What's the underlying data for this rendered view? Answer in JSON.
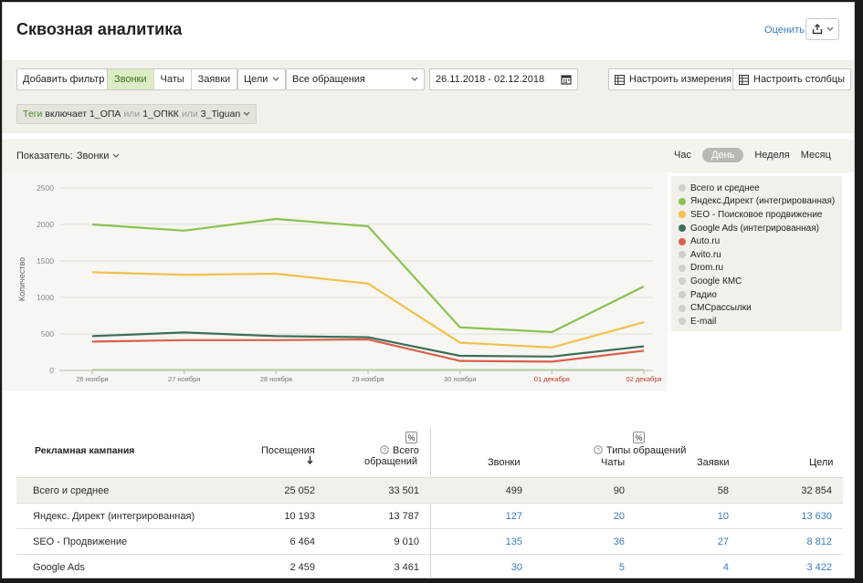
{
  "header": {
    "title": "Сквозная аналитика",
    "rate_label": "Оценить"
  },
  "toolbar": {
    "add_filter": "Добавить фильтр",
    "types": [
      {
        "label": "Звонки",
        "active": true
      },
      {
        "label": "Чаты",
        "active": false
      },
      {
        "label": "Заявки",
        "active": false
      }
    ],
    "goals": "Цели",
    "requests_select": "Все обращения",
    "date_range": "26.11.2018 - 02.12.2018",
    "configure_dimensions": "Настроить измерения",
    "configure_columns": "Настроить столбцы"
  },
  "tag_filter": {
    "prefix": "Теги",
    "includes": "включает",
    "t1": "1_ОПА",
    "or1": "или",
    "t2": "1_ОПКК",
    "or2": "или",
    "t3": "3_Tiguan"
  },
  "indicator": {
    "label": "Показатель:",
    "value": "Звонки"
  },
  "period": {
    "hour": "Час",
    "day": "День",
    "week": "Неделя",
    "month": "Месяц"
  },
  "chart_data": {
    "type": "line",
    "ylabel": "Количество",
    "ylim": [
      0,
      2500
    ],
    "yticks": [
      "0",
      "500",
      "1000",
      "1500",
      "2000",
      "2500"
    ],
    "categories": [
      "26 ноября",
      "27 ноября",
      "28 ноября",
      "29 ноября",
      "30 ноября",
      "01 декабря",
      "02 декабря"
    ],
    "weekend_categories": [
      "01 декабря",
      "02 декабря"
    ],
    "series": [
      {
        "name": "Яндекс.Директ (интегрированная)",
        "color": "#8cc152",
        "values": [
          2000,
          1915,
          2075,
          1975,
          590,
          525,
          1150
        ]
      },
      {
        "name": "SEO - Поисковое продвижение",
        "color": "#f2c04c",
        "values": [
          1345,
          1310,
          1325,
          1190,
          380,
          315,
          660
        ]
      },
      {
        "name": "Google Ads (интегрированная)",
        "color": "#3d6e57",
        "values": [
          470,
          520,
          470,
          455,
          200,
          190,
          330
        ]
      },
      {
        "name": "Auto.ru",
        "color": "#d9604f",
        "values": [
          395,
          415,
          415,
          425,
          130,
          120,
          270
        ]
      }
    ],
    "legend_placement": "right"
  },
  "legend": [
    {
      "label": "Всего и среднее",
      "color": "#cfcfcf"
    },
    {
      "label": "Яндекс.Директ (интегрированная)",
      "color": "#8cc152"
    },
    {
      "label": "SEO - Поисковое продвижение",
      "color": "#f2c04c"
    },
    {
      "label": "Google Ads (интегрированная)",
      "color": "#3d6e57"
    },
    {
      "label": "Auto.ru",
      "color": "#d9604f"
    },
    {
      "label": "Avito.ru",
      "color": "#cfcfcf"
    },
    {
      "label": "Drom.ru",
      "color": "#cfcfcf"
    },
    {
      "label": "Google КМС",
      "color": "#cfcfcf"
    },
    {
      "label": "Радио",
      "color": "#cfcfcf"
    },
    {
      "label": "СМСрассылки",
      "color": "#cfcfcf"
    },
    {
      "label": "E-mail",
      "color": "#cfcfcf"
    }
  ],
  "table": {
    "col_campaign": "Рекламная кампания",
    "col_visits": "Посещения",
    "col_total_requests_1": "Всего",
    "col_total_requests_2": "обращений",
    "col_types": "Типы обращений",
    "col_calls": "Звонки",
    "col_chats": "Чаты",
    "col_forms": "Заявки",
    "col_goals": "Цели",
    "rows": [
      {
        "name": "Всего и среднее",
        "visits": "25 052",
        "requests": "33 501",
        "calls": "499",
        "chats": "90",
        "forms": "58",
        "goals": "32 854"
      },
      {
        "name": "Яндекс. Директ (интегрированная)",
        "visits": "10 193",
        "requests": "13 787",
        "calls": "127",
        "chats": "20",
        "forms": "10",
        "goals": "13 630"
      },
      {
        "name": "SEO - Продвижение",
        "visits": "6 464",
        "requests": "9 010",
        "calls": "135",
        "chats": "36",
        "forms": "27",
        "goals": "8 812"
      },
      {
        "name": "Google Ads",
        "visits": "2 459",
        "requests": "3 461",
        "calls": "30",
        "chats": "5",
        "forms": "4",
        "goals": "3 422"
      }
    ]
  }
}
